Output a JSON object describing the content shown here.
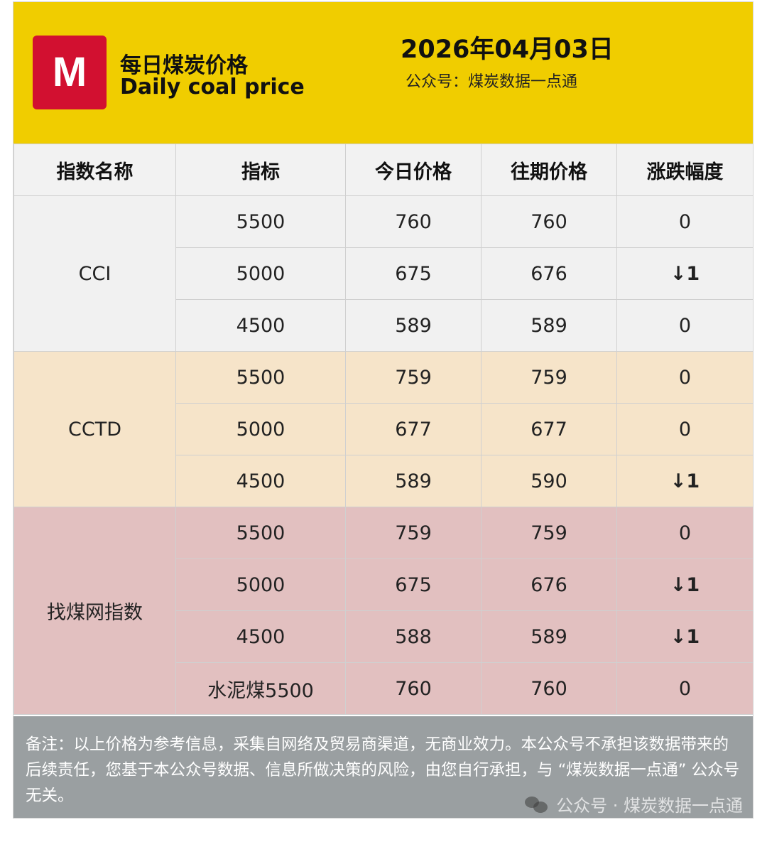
{
  "header": {
    "logo_letter": "M",
    "title_zh": "每日煤炭价格",
    "title_en": "Daily coal price",
    "date": "2026年04月03日",
    "account": "公众号：煤炭数据一点通",
    "bg_color": "#f0cd00",
    "logo_color": "#d21030"
  },
  "table": {
    "columns": [
      "指数名称",
      "指标",
      "今日价格",
      "往期价格",
      "涨跌幅度"
    ],
    "groups": [
      {
        "name": "CCI",
        "rows": [
          {
            "indicator": "5500",
            "today": "760",
            "previous": "760",
            "change": "0"
          },
          {
            "indicator": "5000",
            "today": "675",
            "previous": "676",
            "change": "↓1"
          },
          {
            "indicator": "4500",
            "today": "589",
            "previous": "589",
            "change": "0"
          }
        ]
      },
      {
        "name": "CCTD",
        "rows": [
          {
            "indicator": "5500",
            "today": "759",
            "previous": "759",
            "change": "0"
          },
          {
            "indicator": "5000",
            "today": "677",
            "previous": "677",
            "change": "0"
          },
          {
            "indicator": "4500",
            "today": "589",
            "previous": "590",
            "change": "↓1"
          }
        ]
      },
      {
        "name": "找煤网指数",
        "rows": [
          {
            "indicator": "5500",
            "today": "759",
            "previous": "759",
            "change": "0"
          },
          {
            "indicator": "5000",
            "today": "675",
            "previous": "676",
            "change": "↓1"
          },
          {
            "indicator": "4500",
            "today": "588",
            "previous": "589",
            "change": "↓1"
          },
          {
            "indicator": "水泥煤5500",
            "today": "760",
            "previous": "760",
            "change": "0"
          }
        ]
      }
    ],
    "colors": {
      "cci": "#f1f1f1",
      "cctd": "#f6e4c9",
      "zmw": "#e2c0c0",
      "down": "#2d8a1f"
    }
  },
  "footer": {
    "note": "备注：以上价格为参考信息，采集自网络及贸易商渠道，无商业效力。本公众号不承担该数据带来的后续责任，您基于本公众号数据、信息所做决策的风险，由您自行承担，与 “煤炭数据一点通” 公众号无关。",
    "watermark": "公众号 · 煤炭数据一点通",
    "watermark_icon": "wechat-icon"
  }
}
